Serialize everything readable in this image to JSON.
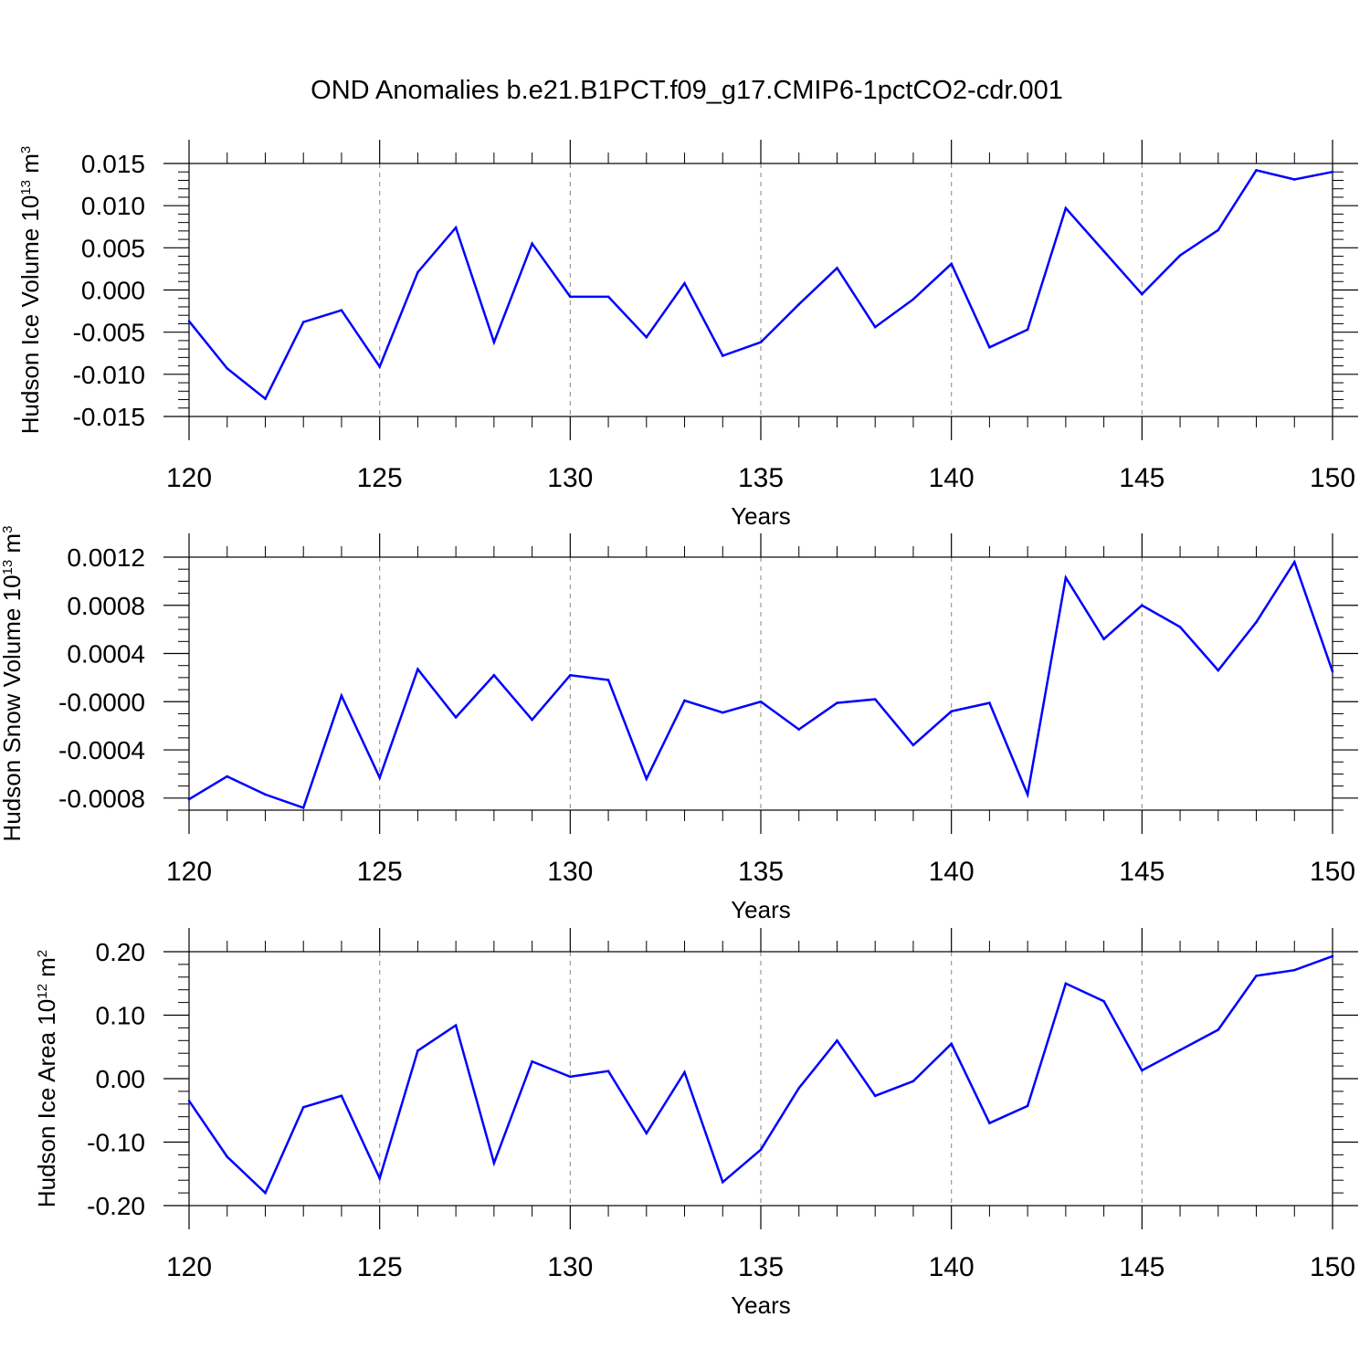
{
  "figure": {
    "title": "OND Anomalies b.e21.B1PCT.f09_g17.CMIP6-1pctCO2-cdr.001"
  },
  "chart_data": [
    {
      "type": "line",
      "ylabel_main": "Hudson Ice Volume 10",
      "ylabel_exp": "13",
      "ylabel_unit": "m",
      "ylabel_unit_exp": "3",
      "xlabel": "Years",
      "xlim": [
        120,
        150
      ],
      "ylim": [
        -0.015,
        0.015
      ],
      "x_major_ticks": [
        120,
        125,
        130,
        135,
        140,
        145,
        150
      ],
      "x_tick_labels": [
        "120",
        "125",
        "130",
        "135",
        "140",
        "145",
        "150"
      ],
      "y_major_ticks": [
        -0.015,
        -0.01,
        -0.005,
        0.0,
        0.005,
        0.01,
        0.015
      ],
      "y_tick_labels": [
        "-0.015",
        "-0.010",
        "-0.005",
        "0.000",
        "0.005",
        "0.010",
        "0.015"
      ],
      "y_minor_step": 0.001,
      "grid": "dashed vertical lines at 125, 130, 135, 140, 145",
      "line_color": "#0000ff",
      "series": [
        {
          "x": [
            120,
            121,
            122,
            123,
            124,
            125,
            126,
            127,
            128,
            129,
            130,
            131,
            132,
            133,
            134,
            135,
            136,
            137,
            138,
            139,
            140,
            141,
            142,
            143,
            144,
            145,
            146,
            147,
            148,
            149,
            150
          ],
          "values": [
            -0.0037,
            -0.0093,
            -0.0129,
            -0.0038,
            -0.0024,
            -0.0091,
            0.0021,
            0.0074,
            -0.0062,
            0.0055,
            -0.0008,
            -0.0008,
            -0.0056,
            0.0008,
            -0.0078,
            -0.0062,
            -0.0017,
            0.0026,
            -0.0044,
            -0.0011,
            0.0031,
            -0.0068,
            -0.0047,
            0.0097,
            0.0046,
            -0.0005,
            0.0041,
            0.0071,
            0.0142,
            0.0131,
            0.014
          ]
        }
      ]
    },
    {
      "type": "line",
      "ylabel_main": "Hudson Snow Volume 10",
      "ylabel_exp": "13",
      "ylabel_unit": "m",
      "ylabel_unit_exp": "3",
      "xlabel": "Years",
      "xlim": [
        120,
        150
      ],
      "ylim": [
        -0.0009,
        0.0012
      ],
      "x_major_ticks": [
        120,
        125,
        130,
        135,
        140,
        145,
        150
      ],
      "x_tick_labels": [
        "120",
        "125",
        "130",
        "135",
        "140",
        "145",
        "150"
      ],
      "y_major_ticks": [
        -0.0008,
        -0.0004,
        0.0,
        0.0004,
        0.0008,
        0.0012
      ],
      "y_tick_labels": [
        "-0.0008",
        "-0.0004",
        "-0.0000",
        "0.0004",
        "0.0008",
        "0.0012"
      ],
      "y_minor_step": 0.0001,
      "grid": "dashed vertical lines at 125, 130, 135, 140, 145",
      "line_color": "#0000ff",
      "series": [
        {
          "x": [
            120,
            121,
            122,
            123,
            124,
            125,
            126,
            127,
            128,
            129,
            130,
            131,
            132,
            133,
            134,
            135,
            136,
            137,
            138,
            139,
            140,
            141,
            142,
            143,
            144,
            145,
            146,
            147,
            148,
            149,
            150
          ],
          "values": [
            -0.00081,
            -0.00062,
            -0.00077,
            -0.00088,
            5e-05,
            -0.00063,
            0.00027,
            -0.00013,
            0.00022,
            -0.00015,
            0.00022,
            0.00018,
            -0.00064,
            1e-05,
            -9e-05,
            0.0,
            -0.00023,
            -1e-05,
            2e-05,
            -0.00036,
            -8e-05,
            -1e-05,
            -0.00077,
            0.00103,
            0.00052,
            0.0008,
            0.00062,
            0.00026,
            0.00066,
            0.00116,
            0.00025
          ]
        }
      ]
    },
    {
      "type": "line",
      "ylabel_main": "Hudson Ice Area 10",
      "ylabel_exp": "12",
      "ylabel_unit": "m",
      "ylabel_unit_exp": "2",
      "xlabel": "Years",
      "xlim": [
        120,
        150
      ],
      "ylim": [
        -0.2,
        0.2
      ],
      "x_major_ticks": [
        120,
        125,
        130,
        135,
        140,
        145,
        150
      ],
      "x_tick_labels": [
        "120",
        "125",
        "130",
        "135",
        "140",
        "145",
        "150"
      ],
      "y_major_ticks": [
        -0.2,
        -0.1,
        0.0,
        0.1,
        0.2
      ],
      "y_tick_labels": [
        "-0.20",
        "-0.10",
        "0.00",
        "0.10",
        "0.20"
      ],
      "y_minor_step": 0.02,
      "grid": "dashed vertical lines at 125, 130, 135, 140, 145",
      "line_color": "#0000ff",
      "series": [
        {
          "x": [
            120,
            121,
            122,
            123,
            124,
            125,
            126,
            127,
            128,
            129,
            130,
            131,
            132,
            133,
            134,
            135,
            136,
            137,
            138,
            139,
            140,
            141,
            142,
            143,
            144,
            145,
            146,
            147,
            148,
            149,
            150
          ],
          "values": [
            -0.035,
            -0.123,
            -0.18,
            -0.045,
            -0.027,
            -0.157,
            0.044,
            0.084,
            -0.133,
            0.027,
            0.003,
            0.012,
            -0.086,
            0.01,
            -0.163,
            -0.112,
            -0.015,
            0.06,
            -0.027,
            -0.004,
            0.055,
            -0.07,
            -0.043,
            0.15,
            0.122,
            0.013,
            0.045,
            0.077,
            0.162,
            0.171,
            0.193
          ]
        }
      ]
    }
  ]
}
